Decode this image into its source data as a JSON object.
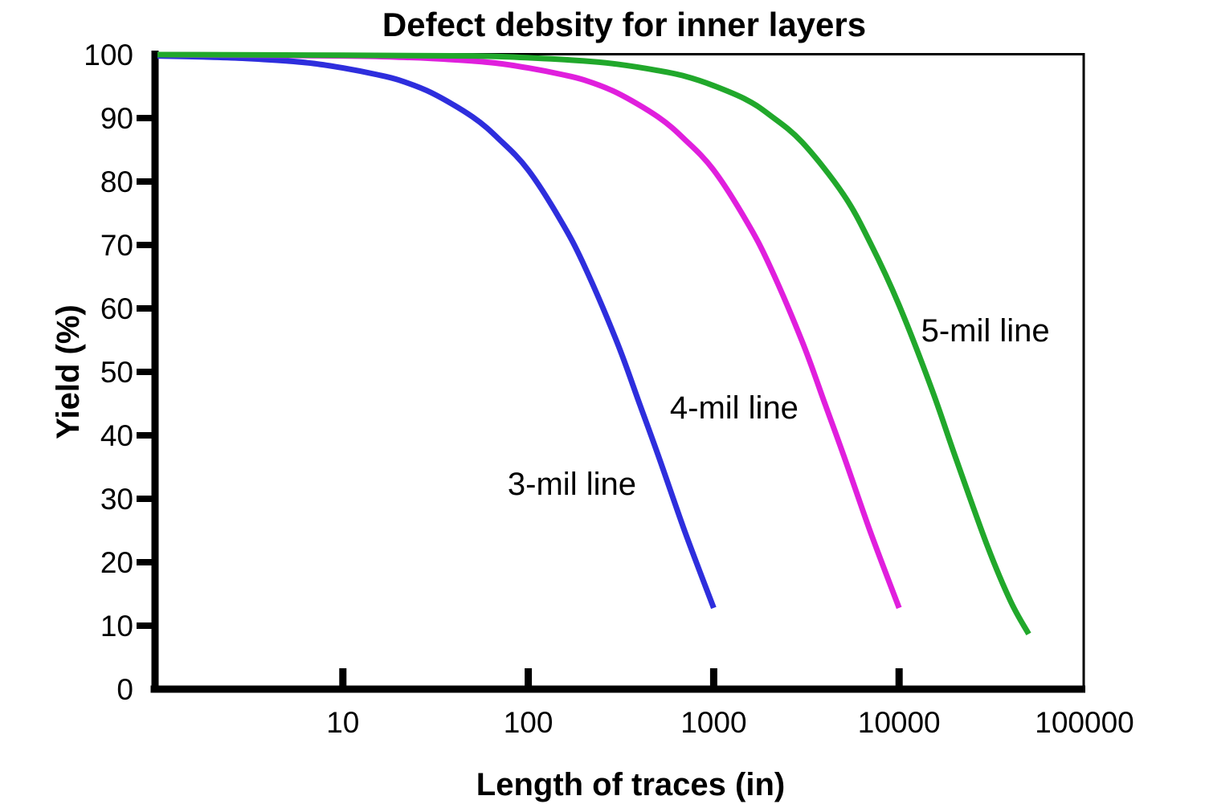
{
  "chart_data": {
    "type": "line",
    "title": "Defect debsity for inner layers",
    "xlabel": "Length of traces (in)",
    "ylabel": "Yield (%)",
    "x_scale": "log",
    "xlim": [
      1,
      100000
    ],
    "ylim": [
      0,
      100
    ],
    "grid": false,
    "legend": "inline-labels",
    "axis_color": "#000000",
    "x_tick_labels": [
      "10",
      "100",
      "1000",
      "10000",
      "100000"
    ],
    "x_tick_values": [
      10,
      100,
      1000,
      10000,
      100000
    ],
    "x_tick_marks": [
      10,
      100,
      1000,
      10000
    ],
    "y_tick_labels": [
      "0",
      "10",
      "20",
      "30",
      "40",
      "50",
      "60",
      "70",
      "80",
      "90",
      "100"
    ],
    "y_tick_values": [
      0,
      10,
      20,
      30,
      40,
      50,
      60,
      70,
      80,
      90,
      100
    ],
    "y_tick_marks": [
      10,
      20,
      30,
      40,
      50,
      60,
      70,
      80,
      90
    ],
    "series": [
      {
        "name": "3-mil line",
        "color": "#2e2edd",
        "points": [
          [
            1,
            99.8
          ],
          [
            2,
            99.6
          ],
          [
            3,
            99.4
          ],
          [
            5,
            99.0
          ],
          [
            7,
            98.6
          ],
          [
            10,
            97.9
          ],
          [
            15,
            96.9
          ],
          [
            20,
            96.0
          ],
          [
            30,
            94.0
          ],
          [
            50,
            90.2
          ],
          [
            70,
            86.6
          ],
          [
            100,
            81.8
          ],
          [
            150,
            73.8
          ],
          [
            200,
            66.8
          ],
          [
            300,
            54.8
          ],
          [
            400,
            44.8
          ],
          [
            500,
            37.0
          ],
          [
            700,
            24.8
          ],
          [
            1000,
            12.8
          ]
        ]
      },
      {
        "name": "4-mil line",
        "color": "#e01fdd",
        "points": [
          [
            1,
            100
          ],
          [
            10,
            99.8
          ],
          [
            20,
            99.6
          ],
          [
            30,
            99.4
          ],
          [
            50,
            99.0
          ],
          [
            70,
            98.6
          ],
          [
            100,
            97.9
          ],
          [
            150,
            96.9
          ],
          [
            200,
            96.0
          ],
          [
            300,
            94.0
          ],
          [
            500,
            90.2
          ],
          [
            700,
            86.6
          ],
          [
            1000,
            81.8
          ],
          [
            1500,
            73.8
          ],
          [
            2000,
            66.8
          ],
          [
            3000,
            54.8
          ],
          [
            4000,
            44.8
          ],
          [
            5000,
            37.0
          ],
          [
            7000,
            24.8
          ],
          [
            10000,
            12.8
          ]
        ]
      },
      {
        "name": "5-mil line",
        "color": "#21a82b",
        "points": [
          [
            1,
            100
          ],
          [
            10,
            99.9
          ],
          [
            50,
            99.8
          ],
          [
            100,
            99.5
          ],
          [
            200,
            99.0
          ],
          [
            300,
            98.5
          ],
          [
            500,
            97.5
          ],
          [
            700,
            96.6
          ],
          [
            1000,
            95.1
          ],
          [
            1500,
            92.9
          ],
          [
            2000,
            90.5
          ],
          [
            3000,
            86.2
          ],
          [
            5000,
            78.0
          ],
          [
            7000,
            70.3
          ],
          [
            10000,
            60.5
          ],
          [
            15000,
            47.3
          ],
          [
            20000,
            36.8
          ],
          [
            30000,
            22.5
          ],
          [
            40000,
            13.8
          ],
          [
            50000,
            8.7
          ]
        ]
      }
    ],
    "annotations": [
      {
        "text": "3-mil line",
        "x": 172,
        "y": 32.4
      },
      {
        "text": "4-mil line",
        "x": 1290,
        "y": 44.4
      },
      {
        "text": "5-mil line",
        "x": 29200,
        "y": 56.6
      }
    ]
  }
}
